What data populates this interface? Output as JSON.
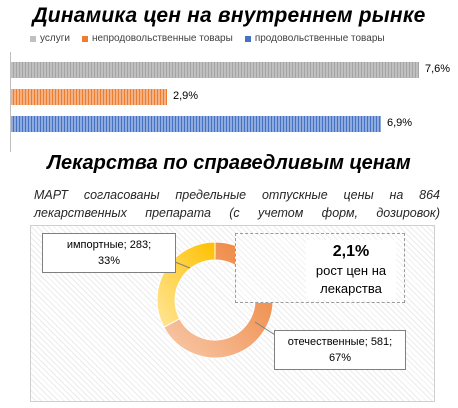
{
  "chart_data": [
    {
      "type": "bar",
      "title": "Динамика цен на внутреннем рынке",
      "series": [
        {
          "name": "услуги",
          "value": 7.6,
          "label": "7,6%",
          "color": "#c0c0c0"
        },
        {
          "name": "непродовольственные товары",
          "value": 2.9,
          "label": "2,9%",
          "color": "#ed7d31"
        },
        {
          "name": "продовольственные товары",
          "value": 6.9,
          "label": "6,9%",
          "color": "#4472c4"
        }
      ],
      "legend_position": "top",
      "xlim": [
        0,
        7.6
      ]
    },
    {
      "type": "pie",
      "title": "Лекарства по справедливым ценам",
      "description": "МАРТ согласованы предельные отпускные цены на 864 лекарственных препарата (с учетом форм, дозировок)",
      "slices": [
        {
          "name": "отечественные",
          "value": 581,
          "percent": 67,
          "label_line1": "отечественные; 581;",
          "label_line2": "67%",
          "color": "#f4b183"
        },
        {
          "name": "импортные",
          "value": 283,
          "percent": 33,
          "label_line1": "импортные; 283;",
          "label_line2": "33%",
          "color": "#ffd966"
        }
      ],
      "donut": true
    }
  ],
  "callout": {
    "value": "2,1%",
    "text_line1": "рост цен на",
    "text_line2": "лекарства"
  }
}
